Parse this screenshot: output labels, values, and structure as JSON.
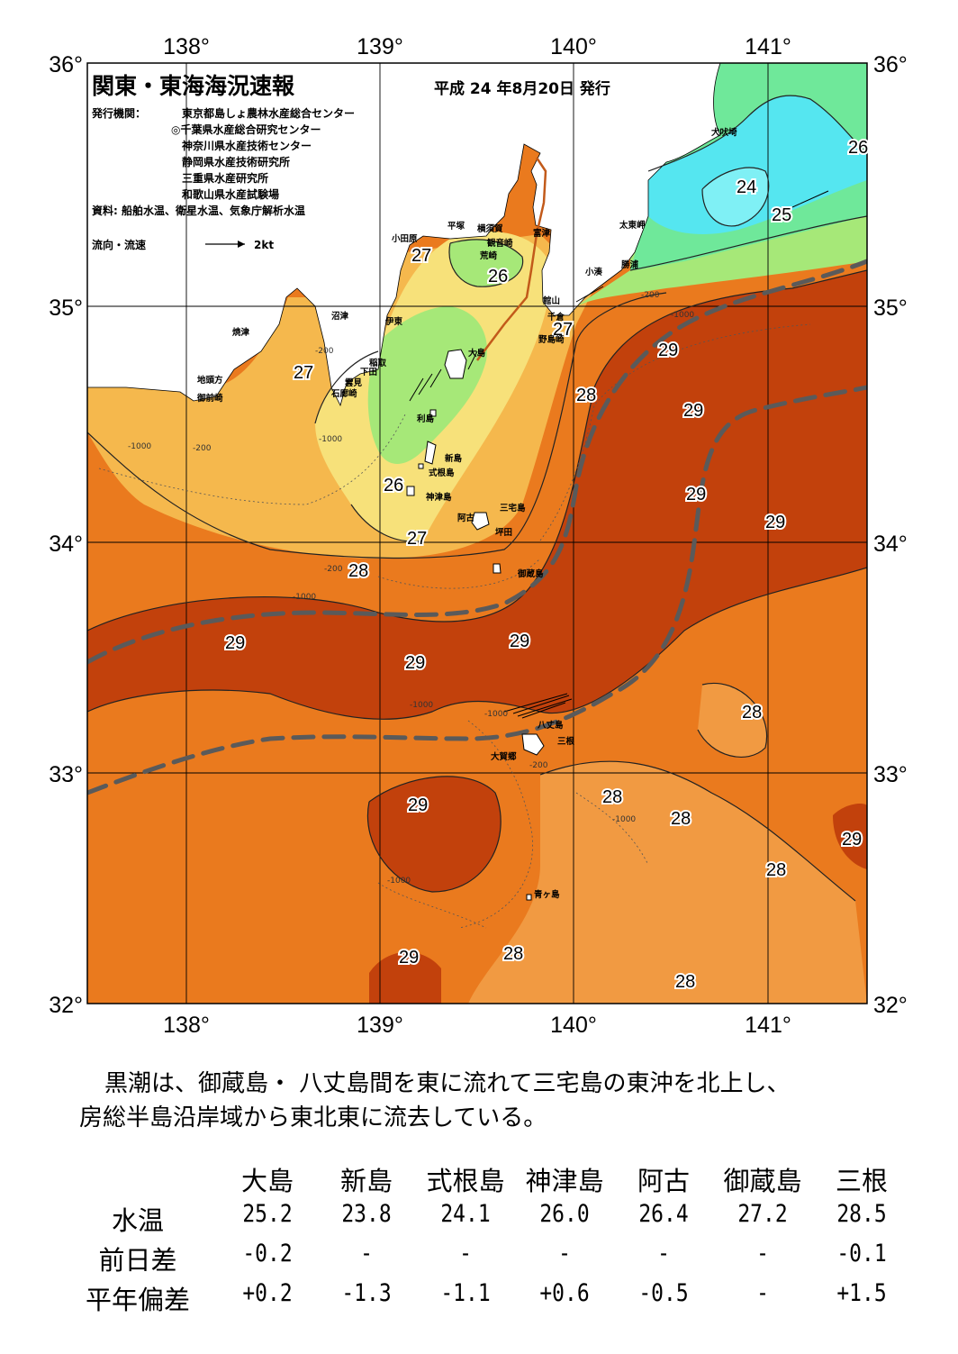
{
  "header": {
    "title": "関東・東海海況速報",
    "date": "平成 24 年8月20日 発行",
    "issuer_label": "発行機関：",
    "issuers": [
      "東京都島しょ農林水産総合センター",
      "◎千葉県水産総合研究センター",
      "神奈川県水産技術センター",
      "静岡県水産技術研究所",
      "三重県水産研究所",
      "和歌山県水産試験場"
    ],
    "source": "資料: 船舶水温、衛星水温、気象庁解析水温",
    "current_legend_label": "流向・流速",
    "current_legend_unit": "2kt"
  },
  "axes": {
    "lon_labels": [
      "138°",
      "139°",
      "140°",
      "141°"
    ],
    "lat_labels": [
      "36°",
      "35°",
      "34°",
      "33°",
      "32°"
    ]
  },
  "colors": {
    "t24": "#55e6f0",
    "t25": "#6fe89a",
    "t26": "#a6e878",
    "t26b": "#f7e17a",
    "t27": "#f5b84d",
    "t28": "#ea7a1e",
    "t29": "#c2410c",
    "land": "#ffffff",
    "kuroshio": "#5a5a5a"
  },
  "isotherm_labels": [
    "24",
    "25",
    "26",
    "27",
    "27",
    "27",
    "26",
    "26",
    "27",
    "28",
    "28",
    "29",
    "29",
    "29",
    "29",
    "29",
    "29",
    "29",
    "28",
    "28",
    "28",
    "28",
    "29",
    "29",
    "28",
    "28",
    "29",
    "28",
    "27"
  ],
  "depth_labels": [
    "-200",
    "-200",
    "-200",
    "-200",
    "-1000",
    "-1000",
    "-1000",
    "-1000",
    "-1000",
    "-1000",
    "-1000",
    "-200",
    "-1000"
  ],
  "place_names": [
    "犬吠埼",
    "太東岬",
    "勝浦",
    "小湊",
    "館山",
    "千倉",
    "野島崎",
    "富津",
    "観音崎",
    "横須賀",
    "荒崎",
    "平塚",
    "小田原",
    "沼津",
    "伊東",
    "焼津",
    "稲取",
    "下田",
    "雲見",
    "石廊崎",
    "地頭方",
    "御前崎",
    "大島",
    "利島",
    "新島",
    "式根島",
    "神津島",
    "三宅島",
    "阿古",
    "坪田",
    "御蔵島",
    "八丈島",
    "三根",
    "大賀郷",
    "青ヶ島"
  ],
  "summary": [
    "黒潮は、御蔵島・ 八丈島間を東に流れて三宅島の東沖を北上し、",
    "房総半島沿岸域から東北東に流去している。"
  ],
  "table": {
    "columns": [
      "大島",
      "新島",
      "式根島",
      "神津島",
      "阿古",
      "御蔵島",
      "三根"
    ],
    "rows": [
      {
        "label": "水温",
        "values": [
          "25.2",
          "23.8",
          "24.1",
          "26.0",
          "26.4",
          "27.2",
          "28.5"
        ]
      },
      {
        "label": "前日差",
        "values": [
          "-0.2",
          "-",
          "-",
          "-",
          "-",
          "-",
          "-0.1"
        ]
      },
      {
        "label": "平年偏差",
        "values": [
          "+0.2",
          "-1.3",
          "-1.1",
          "+0.6",
          "-0.5",
          "-",
          "+1.5"
        ]
      }
    ]
  }
}
